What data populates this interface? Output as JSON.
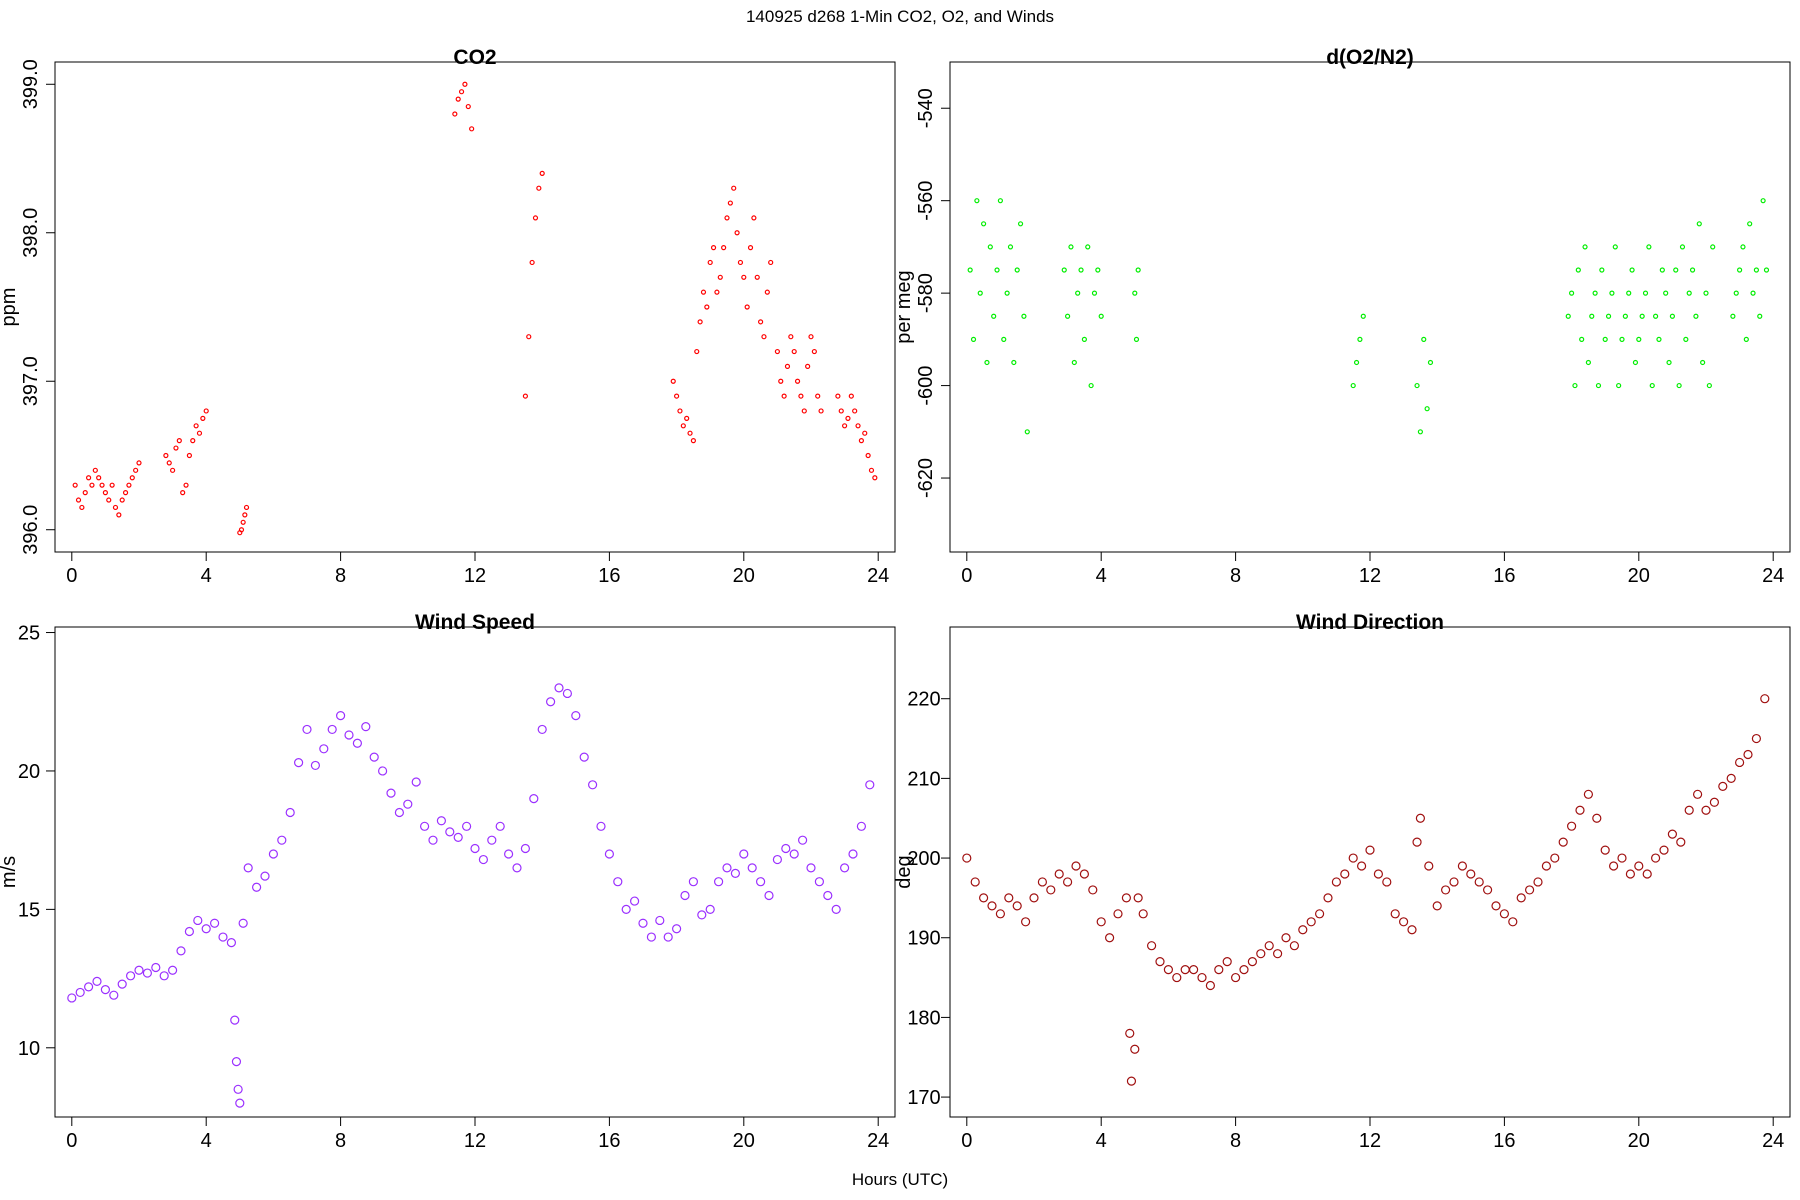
{
  "figure": {
    "title": "140925   d268   1-Min CO2, O2, and Winds",
    "xlabel": "Hours (UTC)"
  },
  "chart_data": [
    {
      "type": "scatter",
      "title": "CO2",
      "xlabel": "",
      "ylabel": "ppm",
      "xlim": [
        -0.5,
        24.5
      ],
      "ylim": [
        395.85,
        399.15
      ],
      "xticks": [
        0,
        4,
        8,
        12,
        16,
        20,
        24
      ],
      "yticks": [
        396.0,
        397.0,
        398.0,
        399.0
      ],
      "ytick_labels": [
        "396.0",
        "397.0",
        "398.0",
        "399.0"
      ],
      "ytick_rotate": true,
      "color": "#ff0000",
      "marker_r": 2,
      "series": [
        {
          "x": [
            0.1,
            0.2,
            0.3,
            0.4,
            0.5,
            0.6,
            0.7,
            0.8,
            0.9,
            1.0,
            1.1,
            1.2,
            1.3,
            1.4,
            1.5,
            1.6,
            1.7,
            1.8,
            1.9,
            2.0,
            2.8,
            2.9,
            3.0,
            3.1,
            3.2,
            3.3,
            3.4,
            3.5,
            3.6,
            3.7,
            3.8,
            3.9,
            4.0,
            5.0,
            5.05,
            5.1,
            5.15,
            5.2,
            11.4,
            11.5,
            11.6,
            11.7,
            11.8,
            11.9,
            13.5,
            13.6,
            13.7,
            13.8,
            13.9,
            14.0,
            17.9,
            18.0,
            18.1,
            18.2,
            18.3,
            18.4,
            18.5,
            18.6,
            18.7,
            18.8,
            18.9,
            19.0,
            19.1,
            19.2,
            19.3,
            19.4,
            19.5,
            19.6,
            19.7,
            19.8,
            19.9,
            20.0,
            20.1,
            20.2,
            20.3,
            20.4,
            20.5,
            20.6,
            20.7,
            20.8,
            21.0,
            21.1,
            21.2,
            21.3,
            21.4,
            21.5,
            21.6,
            21.7,
            21.8,
            21.9,
            22.0,
            22.1,
            22.2,
            22.3,
            22.8,
            22.9,
            23.0,
            23.1,
            23.2,
            23.3,
            23.4,
            23.5,
            23.6,
            23.7,
            23.8,
            23.9
          ],
          "y": [
            396.3,
            396.2,
            396.15,
            396.25,
            396.35,
            396.3,
            396.4,
            396.35,
            396.3,
            396.25,
            396.2,
            396.3,
            396.15,
            396.1,
            396.2,
            396.25,
            396.3,
            396.35,
            396.4,
            396.45,
            396.5,
            396.45,
            396.4,
            396.55,
            396.6,
            396.25,
            396.3,
            396.5,
            396.6,
            396.7,
            396.65,
            396.75,
            396.8,
            395.98,
            396.0,
            396.05,
            396.1,
            396.15,
            398.8,
            398.9,
            398.95,
            399.0,
            398.85,
            398.7,
            396.9,
            397.3,
            397.8,
            398.1,
            398.3,
            398.4,
            397.0,
            396.9,
            396.8,
            396.7,
            396.75,
            396.65,
            396.6,
            397.2,
            397.4,
            397.6,
            397.5,
            397.8,
            397.9,
            397.6,
            397.7,
            397.9,
            398.1,
            398.2,
            398.3,
            398.0,
            397.8,
            397.7,
            397.5,
            397.9,
            398.1,
            397.7,
            397.4,
            397.3,
            397.6,
            397.8,
            397.2,
            397.0,
            396.9,
            397.1,
            397.3,
            397.2,
            397.0,
            396.9,
            396.8,
            397.1,
            397.3,
            397.2,
            396.9,
            396.8,
            396.9,
            396.8,
            396.7,
            396.75,
            396.9,
            396.8,
            396.7,
            396.6,
            396.65,
            396.5,
            396.4,
            396.35
          ]
        }
      ]
    },
    {
      "type": "scatter",
      "title": "d(O2/N2)",
      "xlabel": "",
      "ylabel": "per meg",
      "xlim": [
        -0.5,
        24.5
      ],
      "ylim": [
        -636,
        -530
      ],
      "xticks": [
        0,
        4,
        8,
        12,
        16,
        20,
        24
      ],
      "yticks": [
        -620,
        -600,
        -580,
        -560,
        -540
      ],
      "ytick_labels": [
        "-620",
        "-600",
        "-580",
        "-560",
        "-540"
      ],
      "ytick_rotate": true,
      "color": "#00ee00",
      "marker_r": 2,
      "series": [
        {
          "x": [
            0.1,
            0.2,
            0.3,
            0.4,
            0.5,
            0.6,
            0.7,
            0.8,
            0.9,
            1.0,
            1.1,
            1.2,
            1.3,
            1.4,
            1.5,
            1.6,
            1.7,
            1.8,
            2.9,
            3.0,
            3.1,
            3.2,
            3.3,
            3.4,
            3.5,
            3.6,
            3.7,
            3.8,
            3.9,
            4.0,
            5.0,
            5.05,
            5.1,
            11.5,
            11.6,
            11.7,
            11.8,
            13.4,
            13.5,
            13.6,
            13.7,
            13.8,
            17.9,
            18.0,
            18.1,
            18.2,
            18.3,
            18.4,
            18.5,
            18.6,
            18.7,
            18.8,
            18.9,
            19.0,
            19.1,
            19.2,
            19.3,
            19.4,
            19.5,
            19.6,
            19.7,
            19.8,
            19.9,
            20.0,
            20.1,
            20.2,
            20.3,
            20.4,
            20.5,
            20.6,
            20.7,
            20.8,
            20.9,
            21.0,
            21.1,
            21.2,
            21.3,
            21.4,
            21.5,
            21.6,
            21.7,
            21.8,
            21.9,
            22.0,
            22.1,
            22.2,
            22.8,
            22.9,
            23.0,
            23.1,
            23.2,
            23.3,
            23.4,
            23.5,
            23.6,
            23.7,
            23.8
          ],
          "y": [
            -575,
            -590,
            -560,
            -580,
            -565,
            -595,
            -570,
            -585,
            -575,
            -560,
            -590,
            -580,
            -570,
            -595,
            -575,
            -565,
            -585,
            -610,
            -575,
            -585,
            -570,
            -595,
            -580,
            -575,
            -590,
            -570,
            -600,
            -580,
            -575,
            -585,
            -580,
            -590,
            -575,
            -600,
            -595,
            -590,
            -585,
            -600,
            -610,
            -590,
            -605,
            -595,
            -585,
            -580,
            -600,
            -575,
            -590,
            -570,
            -595,
            -585,
            -580,
            -600,
            -575,
            -590,
            -585,
            -580,
            -570,
            -600,
            -590,
            -585,
            -580,
            -575,
            -595,
            -590,
            -585,
            -580,
            -570,
            -600,
            -585,
            -590,
            -575,
            -580,
            -595,
            -585,
            -575,
            -600,
            -570,
            -590,
            -580,
            -575,
            -585,
            -565,
            -595,
            -580,
            -600,
            -570,
            -585,
            -580,
            -575,
            -570,
            -590,
            -565,
            -580,
            -575,
            -585,
            -560,
            -575
          ]
        }
      ]
    },
    {
      "type": "scatter",
      "title": "Wind Speed",
      "xlabel": "",
      "ylabel": "m/s",
      "xlim": [
        -0.5,
        24.5
      ],
      "ylim": [
        7.5,
        25.2
      ],
      "xticks": [
        0,
        4,
        8,
        12,
        16,
        20,
        24
      ],
      "yticks": [
        10,
        15,
        20,
        25
      ],
      "ytick_labels": [
        "10",
        "15",
        "20",
        "25"
      ],
      "ytick_rotate": false,
      "color": "#9b30ff",
      "marker_r": 4,
      "series": [
        {
          "x": [
            0.0,
            0.25,
            0.5,
            0.75,
            1.0,
            1.25,
            1.5,
            1.75,
            2.0,
            2.25,
            2.5,
            2.75,
            3.0,
            3.25,
            3.5,
            3.75,
            4.0,
            4.25,
            4.5,
            4.75,
            4.85,
            4.9,
            4.95,
            5.0,
            5.1,
            5.25,
            5.5,
            5.75,
            6.0,
            6.25,
            6.5,
            6.75,
            7.0,
            7.25,
            7.5,
            7.75,
            8.0,
            8.25,
            8.5,
            8.75,
            9.0,
            9.25,
            9.5,
            9.75,
            10.0,
            10.25,
            10.5,
            10.75,
            11.0,
            11.25,
            11.5,
            11.75,
            12.0,
            12.25,
            12.5,
            12.75,
            13.0,
            13.25,
            13.5,
            13.75,
            14.0,
            14.25,
            14.5,
            14.75,
            15.0,
            15.25,
            15.5,
            15.75,
            16.0,
            16.25,
            16.5,
            16.75,
            17.0,
            17.25,
            17.5,
            17.75,
            18.0,
            18.25,
            18.5,
            18.75,
            19.0,
            19.25,
            19.5,
            19.75,
            20.0,
            20.25,
            20.5,
            20.75,
            21.0,
            21.25,
            21.5,
            21.75,
            22.0,
            22.25,
            22.5,
            22.75,
            23.0,
            23.25,
            23.5,
            23.75
          ],
          "y": [
            11.8,
            12.0,
            12.2,
            12.4,
            12.1,
            11.9,
            12.3,
            12.6,
            12.8,
            12.7,
            12.9,
            12.6,
            12.8,
            13.5,
            14.2,
            14.6,
            14.3,
            14.5,
            14.0,
            13.8,
            11.0,
            9.5,
            8.5,
            8.0,
            14.5,
            16.5,
            15.8,
            16.2,
            17.0,
            17.5,
            18.5,
            20.3,
            21.5,
            20.2,
            20.8,
            21.5,
            22.0,
            21.3,
            21.0,
            21.6,
            20.5,
            20.0,
            19.2,
            18.5,
            18.8,
            19.6,
            18.0,
            17.5,
            18.2,
            17.8,
            17.6,
            18.0,
            17.2,
            16.8,
            17.5,
            18.0,
            17.0,
            16.5,
            17.2,
            19.0,
            21.5,
            22.5,
            23.0,
            22.8,
            22.0,
            20.5,
            19.5,
            18.0,
            17.0,
            16.0,
            15.0,
            15.3,
            14.5,
            14.0,
            14.6,
            14.0,
            14.3,
            15.5,
            16.0,
            14.8,
            15.0,
            16.0,
            16.5,
            16.3,
            17.0,
            16.5,
            16.0,
            15.5,
            16.8,
            17.2,
            17.0,
            17.5,
            16.5,
            16.0,
            15.5,
            15.0,
            16.5,
            17.0,
            18.0,
            19.5
          ]
        }
      ]
    },
    {
      "type": "scatter",
      "title": "Wind Direction",
      "xlabel": "",
      "ylabel": "deg",
      "xlim": [
        -0.5,
        24.5
      ],
      "ylim": [
        167.5,
        229
      ],
      "xticks": [
        0,
        4,
        8,
        12,
        16,
        20,
        24
      ],
      "yticks": [
        170,
        180,
        190,
        200,
        210,
        220
      ],
      "ytick_labels": [
        "170",
        "180",
        "190",
        "200",
        "210",
        "220"
      ],
      "ytick_rotate": false,
      "color": "#a01010",
      "marker_r": 4,
      "series": [
        {
          "x": [
            0.0,
            0.25,
            0.5,
            0.75,
            1.0,
            1.25,
            1.5,
            1.75,
            2.0,
            2.25,
            2.5,
            2.75,
            3.0,
            3.25,
            3.5,
            3.75,
            4.0,
            4.25,
            4.5,
            4.75,
            4.85,
            4.9,
            5.0,
            5.1,
            5.25,
            5.5,
            5.75,
            6.0,
            6.25,
            6.5,
            6.75,
            7.0,
            7.25,
            7.5,
            7.75,
            8.0,
            8.25,
            8.5,
            8.75,
            9.0,
            9.25,
            9.5,
            9.75,
            10.0,
            10.25,
            10.5,
            10.75,
            11.0,
            11.25,
            11.5,
            11.75,
            12.0,
            12.25,
            12.5,
            12.75,
            13.0,
            13.25,
            13.4,
            13.5,
            13.75,
            14.0,
            14.25,
            14.5,
            14.75,
            15.0,
            15.25,
            15.5,
            15.75,
            16.0,
            16.25,
            16.5,
            16.75,
            17.0,
            17.25,
            17.5,
            17.75,
            18.0,
            18.25,
            18.5,
            18.75,
            19.0,
            19.25,
            19.5,
            19.75,
            20.0,
            20.25,
            20.5,
            20.75,
            21.0,
            21.25,
            21.5,
            21.75,
            22.0,
            22.25,
            22.5,
            22.75,
            23.0,
            23.25,
            23.5,
            23.75
          ],
          "y": [
            200,
            197,
            195,
            194,
            193,
            195,
            194,
            192,
            195,
            197,
            196,
            198,
            197,
            199,
            198,
            196,
            192,
            190,
            193,
            195,
            178,
            172,
            176,
            195,
            193,
            189,
            187,
            186,
            185,
            186,
            186,
            185,
            184,
            186,
            187,
            185,
            186,
            187,
            188,
            189,
            188,
            190,
            189,
            191,
            192,
            193,
            195,
            197,
            198,
            200,
            199,
            201,
            198,
            197,
            193,
            192,
            191,
            202,
            205,
            199,
            194,
            196,
            197,
            199,
            198,
            197,
            196,
            194,
            193,
            192,
            195,
            196,
            197,
            199,
            200,
            202,
            204,
            206,
            208,
            205,
            201,
            199,
            200,
            198,
            199,
            198,
            200,
            201,
            203,
            202,
            206,
            208,
            206,
            207,
            209,
            210,
            212,
            213,
            215,
            220
          ]
        }
      ]
    }
  ]
}
